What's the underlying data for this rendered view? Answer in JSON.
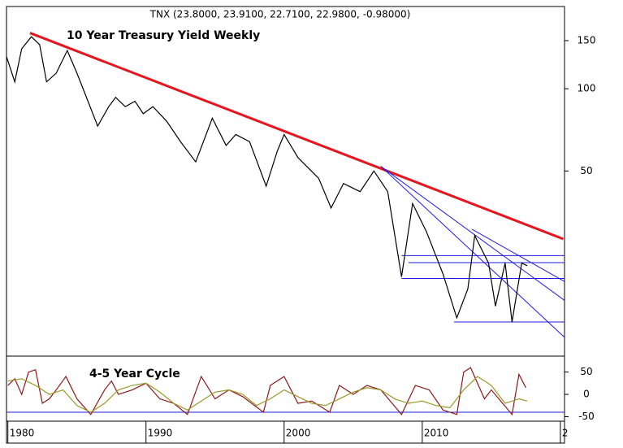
{
  "chart_data": [
    {
      "type": "line",
      "header": "TNX (23.8000, 23.9100, 22.7100, 22.9800, -0.98000)",
      "title": "10 Year Treasury Yield Weekly",
      "log_scale": true,
      "xlim": [
        1979.9,
        2020.3
      ],
      "ylim": [
        10.5,
        200
      ],
      "yticks": [
        50,
        100,
        150
      ],
      "x": [
        1979.9,
        1980.5,
        1981.0,
        1981.7,
        1982.3,
        1982.8,
        1983.5,
        1984.3,
        1985.0,
        1985.8,
        1986.5,
        1987.3,
        1987.8,
        1988.5,
        1989.2,
        1989.8,
        1990.5,
        1991.5,
        1992.5,
        1993.6,
        1994.8,
        1995.8,
        1996.5,
        1997.5,
        1998.7,
        1999.5,
        2000.0,
        2001.0,
        2002.5,
        2003.4,
        2004.3,
        2005.5,
        2006.5,
        2007.5,
        2008.5,
        2009.3,
        2010.3,
        2011.5,
        2012.5,
        2013.3,
        2013.8,
        2014.8,
        2015.3,
        2016.0,
        2016.5,
        2017.2,
        2017.6
      ],
      "series": [
        {
          "color": "#000000",
          "values": [
            131,
            106,
            140,
            155,
            145,
            106,
            114,
            138,
            114,
            90,
            73,
            86,
            93,
            86,
            90,
            81,
            86,
            76,
            64,
            54,
            78,
            62,
            68,
            64,
            44,
            59,
            68,
            56,
            47,
            36.6,
            45,
            42,
            50,
            42,
            20.5,
            38,
            30,
            21,
            14.5,
            18.5,
            29,
            23,
            16,
            23,
            14,
            23,
            22.5
          ]
        }
      ],
      "trendlines": [
        {
          "color": "#e8141e",
          "x": [
            1981.6,
            2020.2
          ],
          "values": [
            160,
            28.2
          ]
        },
        {
          "color": "#1c1ce0",
          "x": [
            2007.0,
            2020.3
          ],
          "values": [
            52,
            12.3
          ]
        },
        {
          "color": "#1c1ce0",
          "x": [
            2007.0,
            2020.3
          ],
          "values": [
            52,
            16.8
          ]
        },
        {
          "color": "#1c1ce0",
          "x": [
            2013.6,
            2020.3
          ],
          "values": [
            30.6,
            19.7
          ]
        },
        {
          "color": "#1c1ce0",
          "x": [
            2008.5,
            2020.3
          ],
          "values": [
            24.5,
            24.5
          ]
        },
        {
          "color": "#1c1ce0",
          "x": [
            2009.0,
            2020.3
          ],
          "values": [
            23.1,
            23.1
          ]
        },
        {
          "color": "#1c1ce0",
          "x": [
            2008.5,
            2020.3
          ],
          "values": [
            20.2,
            20.2
          ]
        },
        {
          "color": "#1c1ce0",
          "x": [
            2012.3,
            2020.3
          ],
          "values": [
            14.0,
            14.0
          ]
        }
      ]
    },
    {
      "type": "line",
      "title": "4-5 Year Cycle",
      "xlim": [
        1979.9,
        2020.3
      ],
      "ylim": [
        -60,
        82
      ],
      "yticks": [
        50,
        0,
        -50
      ],
      "xticks": [
        1980,
        1990,
        2000,
        2010,
        {
          "value": 2020,
          "label": "2"
        }
      ],
      "hlines": [
        {
          "value": -40,
          "color": "#1c1ce0"
        }
      ],
      "series": [
        {
          "color": "#8b1a1a",
          "x": [
            1980,
            1980.5,
            1981,
            1981.5,
            1982,
            1982.5,
            1983,
            1983.5,
            1984.2,
            1985,
            1986,
            1987,
            1987.5,
            1988,
            1989,
            1990,
            1991,
            1992,
            1993,
            1994,
            1995,
            1996,
            1997,
            1998.5,
            1999,
            2000,
            2001,
            2002,
            2003.3,
            2004,
            2005,
            2006,
            2007,
            2008.5,
            2009.5,
            2010.5,
            2011.5,
            2012.5,
            2013,
            2013.5,
            2014.5,
            2015,
            2016.5,
            2017,
            2017.5
          ],
          "values": [
            20,
            35,
            0,
            50,
            55,
            -20,
            -10,
            10,
            40,
            -10,
            -45,
            10,
            30,
            0,
            10,
            25,
            -10,
            -20,
            -45,
            40,
            -10,
            10,
            -5,
            -40,
            20,
            40,
            -20,
            -15,
            -40,
            20,
            0,
            20,
            10,
            -45,
            20,
            10,
            -35,
            -45,
            50,
            60,
            -10,
            10,
            -45,
            45,
            15
          ]
        },
        {
          "color": "#9a9a2a",
          "x": [
            1980,
            1981,
            1982,
            1983,
            1984,
            1985,
            1986,
            1987,
            1988,
            1989,
            1990,
            1991,
            1992,
            1993,
            1994,
            1995,
            1996,
            1997,
            1998,
            1999,
            2000,
            2001,
            2002,
            2003,
            2004,
            2005,
            2006,
            2007,
            2008,
            2009,
            2010,
            2011,
            2012,
            2013,
            2014,
            2015,
            2016,
            2017,
            2017.6
          ],
          "values": [
            30,
            35,
            20,
            0,
            10,
            -25,
            -40,
            -20,
            10,
            20,
            25,
            5,
            -20,
            -35,
            -15,
            5,
            10,
            0,
            -25,
            -10,
            10,
            -5,
            -20,
            -25,
            -10,
            5,
            15,
            10,
            -10,
            -20,
            -15,
            -25,
            -30,
            10,
            40,
            20,
            -20,
            -10,
            -15
          ]
        }
      ]
    }
  ]
}
